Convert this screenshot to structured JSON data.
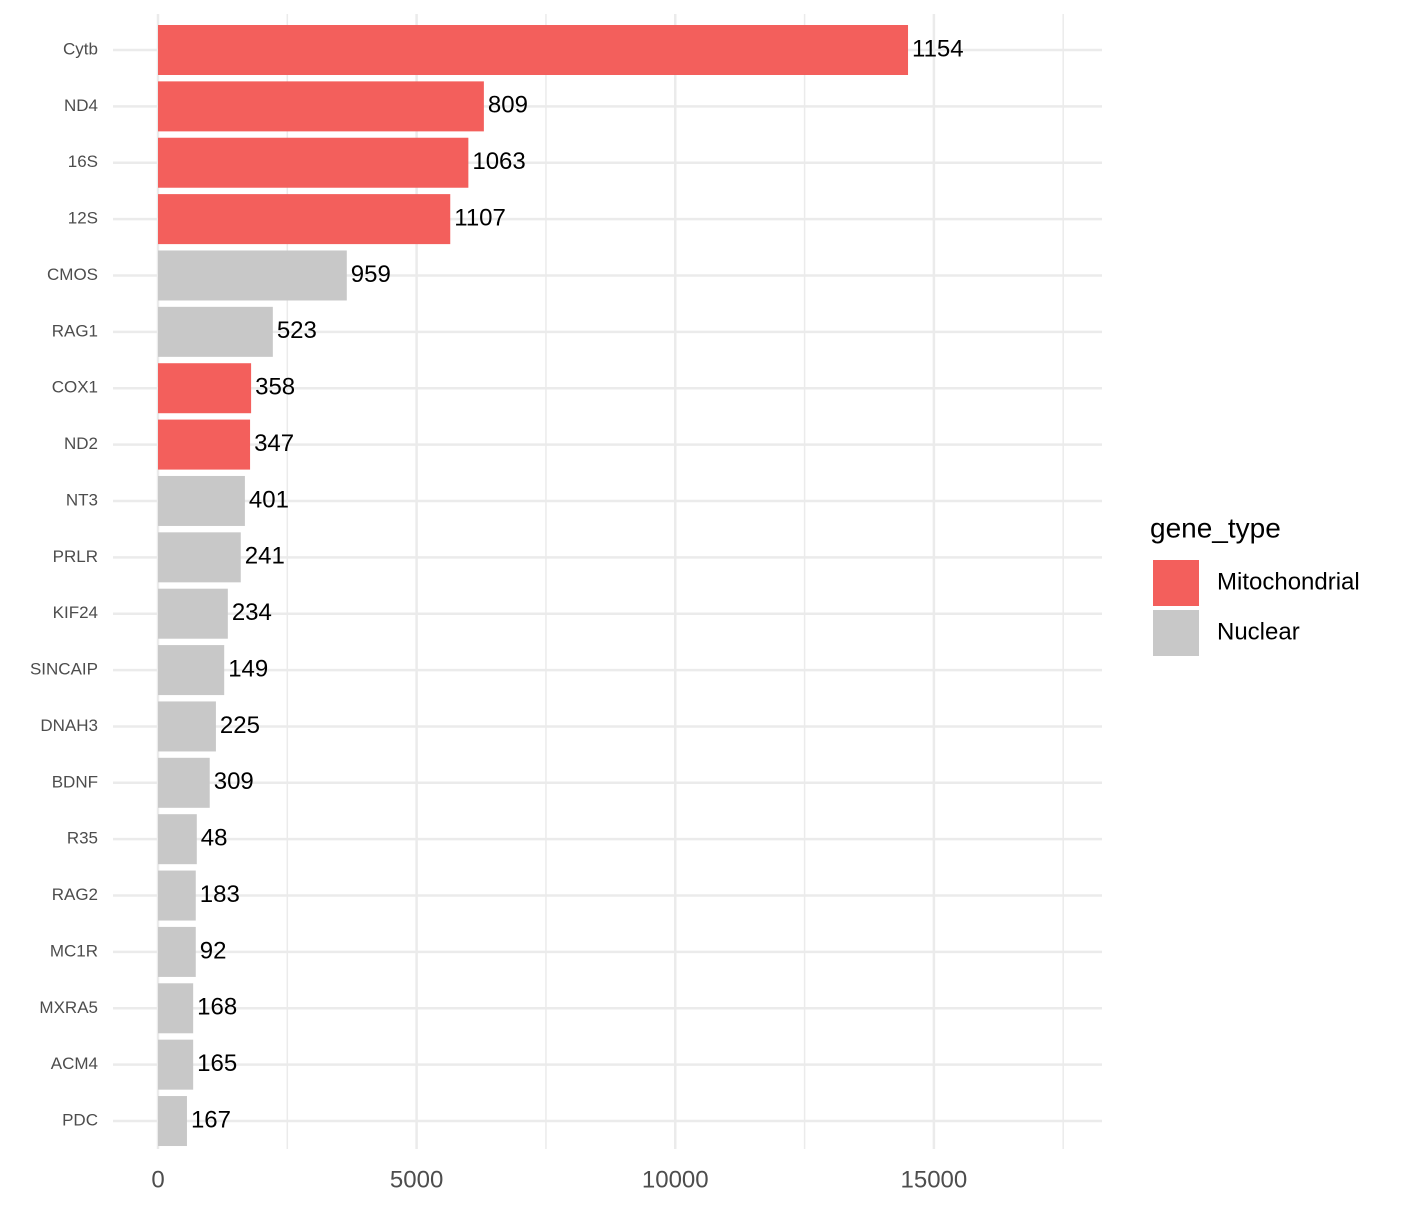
{
  "chart_data": {
    "type": "bar",
    "orientation": "horizontal",
    "categories": [
      "Cytb",
      "ND4",
      "16S",
      "12S",
      "CMOS",
      "RAG1",
      "COX1",
      "ND2",
      "NT3",
      "PRLR",
      "KIF24",
      "SINCAIP",
      "DNAH3",
      "BDNF",
      "R35",
      "RAG2",
      "MC1R",
      "MXRA5",
      "ACM4",
      "PDC"
    ],
    "series": [
      {
        "name": "Mitochondrial",
        "color": "#f35f5c",
        "values": [
          14500,
          6300,
          6000,
          5650,
          null,
          null,
          1800,
          1780,
          null,
          null,
          null,
          null,
          null,
          null,
          null,
          null,
          null,
          null,
          null,
          null
        ]
      },
      {
        "name": "Nuclear",
        "color": "#c8c8c8",
        "values": [
          null,
          null,
          null,
          null,
          3650,
          2220,
          null,
          null,
          1680,
          1600,
          1350,
          1280,
          1120,
          1000,
          750,
          730,
          730,
          680,
          680,
          560
        ]
      }
    ],
    "bar_labels": [
      1154,
      809,
      1063,
      1107,
      959,
      523,
      358,
      347,
      401,
      241,
      234,
      149,
      225,
      309,
      48,
      183,
      92,
      168,
      165,
      167
    ],
    "legend_title": "gene_type",
    "legend_position": "right",
    "xlim": [
      -870,
      18250
    ],
    "xticks": [
      0,
      5000,
      10000,
      15000
    ],
    "x_minor_gridlines": [
      2500,
      7500,
      12500,
      17500
    ],
    "grid": true
  }
}
